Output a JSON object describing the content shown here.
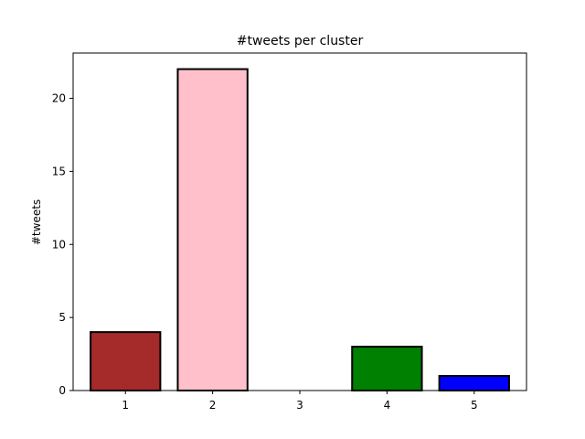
{
  "chart_data": {
    "type": "bar",
    "title": "#tweets per cluster",
    "xlabel": "",
    "ylabel": "#tweets",
    "categories": [
      "1",
      "2",
      "3",
      "4",
      "5"
    ],
    "values": [
      4,
      22,
      0,
      3,
      1
    ],
    "colors": [
      "#a52a2a",
      "#ffc0cb",
      "#000000",
      "#008000",
      "#0000ff"
    ],
    "edge_color": "#000000",
    "xlim": [
      0.4,
      5.6
    ],
    "ylim": [
      0,
      23.1
    ],
    "yticks": [
      0,
      5,
      10,
      15,
      20
    ],
    "grid": false
  }
}
